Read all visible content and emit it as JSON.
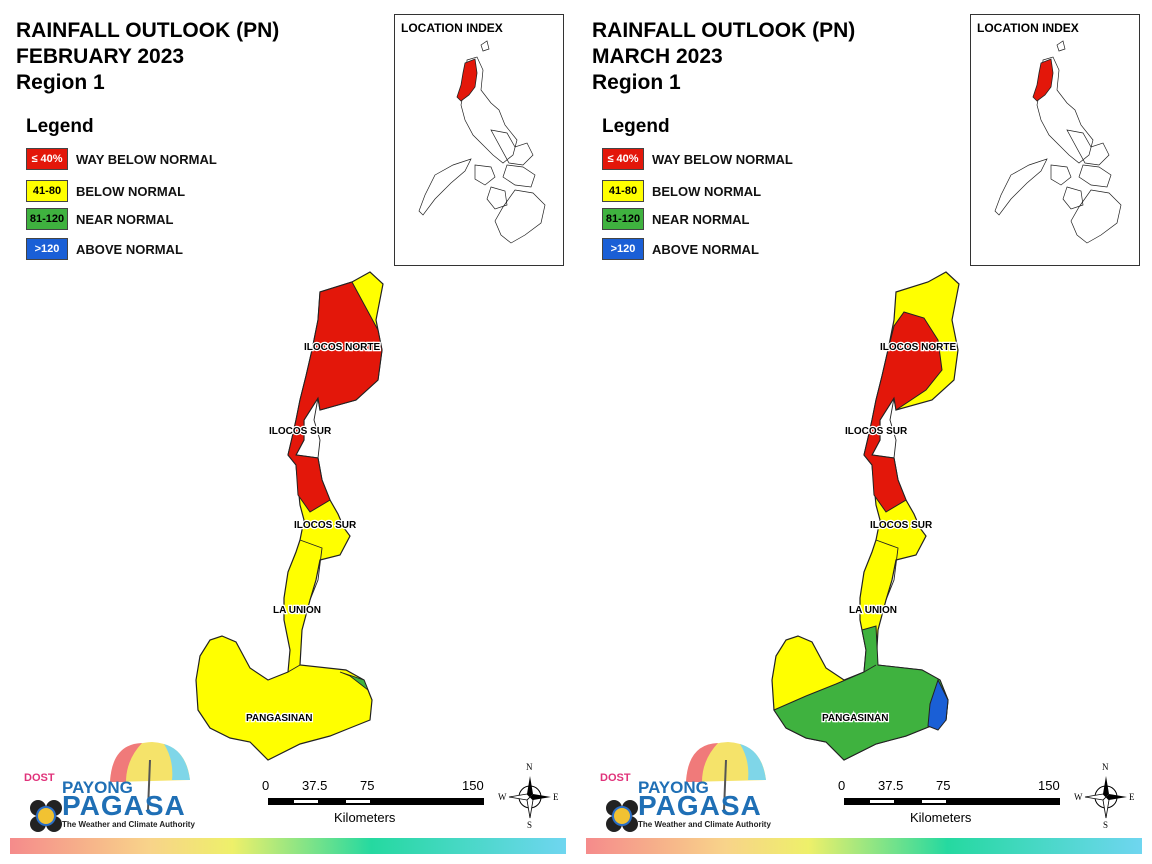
{
  "panels": [
    {
      "title_line1": "RAINFALL OUTLOOK (PN)",
      "title_line2": "FEBRUARY 2023",
      "title_line3": "Region 1",
      "legend_title": "Legend",
      "legend": [
        {
          "swatch": "≤ 40%",
          "label": "WAY BELOW NORMAL",
          "color": "#e3170a"
        },
        {
          "swatch": "41-80",
          "label": "BELOW NORMAL",
          "color": "#ffff00"
        },
        {
          "swatch": "81-120",
          "label": "NEAR NORMAL",
          "color": "#3fb23f"
        },
        {
          "swatch": ">120",
          "label": "ABOVE NORMAL",
          "color": "#1a5fd6"
        }
      ],
      "index_title": "LOCATION INDEX",
      "labels": {
        "ilocos_norte": "ILOCOS NORTE",
        "ilocos_sur_1": "ILOCOS SUR",
        "ilocos_sur_2": "ILOCOS SUR",
        "la_union": "LA UNION",
        "pangasinan": "PANGASINAN"
      },
      "scale": {
        "t0": "0",
        "t1": "37.5",
        "t2": "75",
        "t3": "150",
        "unit": "Kilometers"
      },
      "compass": {
        "n": "N",
        "s": "S",
        "e": "E",
        "w": "W"
      },
      "logo": {
        "dost": "DOST",
        "payong": "PAYONG",
        "pagasa": "PAGASA",
        "tagline": "The Weather and Climate Authority"
      }
    },
    {
      "title_line1": "RAINFALL OUTLOOK (PN)",
      "title_line2": "MARCH 2023",
      "title_line3": "Region 1",
      "legend_title": "Legend",
      "legend": [
        {
          "swatch": "≤ 40%",
          "label": "WAY BELOW NORMAL",
          "color": "#e3170a"
        },
        {
          "swatch": "41-80",
          "label": "BELOW NORMAL",
          "color": "#ffff00"
        },
        {
          "swatch": "81-120",
          "label": "NEAR NORMAL",
          "color": "#3fb23f"
        },
        {
          "swatch": ">120",
          "label": "ABOVE NORMAL",
          "color": "#1a5fd6"
        }
      ],
      "index_title": "LOCATION INDEX",
      "labels": {
        "ilocos_norte": "ILOCOS NORTE",
        "ilocos_sur_1": "ILOCOS SUR",
        "ilocos_sur_2": "ILOCOS SUR",
        "la_union": "LA UNION",
        "pangasinan": "PANGASINAN"
      },
      "scale": {
        "t0": "0",
        "t1": "37.5",
        "t2": "75",
        "t3": "150",
        "unit": "Kilometers"
      },
      "compass": {
        "n": "N",
        "s": "S",
        "e": "E",
        "w": "W"
      },
      "logo": {
        "dost": "DOST",
        "payong": "PAYONG",
        "pagasa": "PAGASA",
        "tagline": "The Weather and Climate Authority"
      }
    }
  ]
}
